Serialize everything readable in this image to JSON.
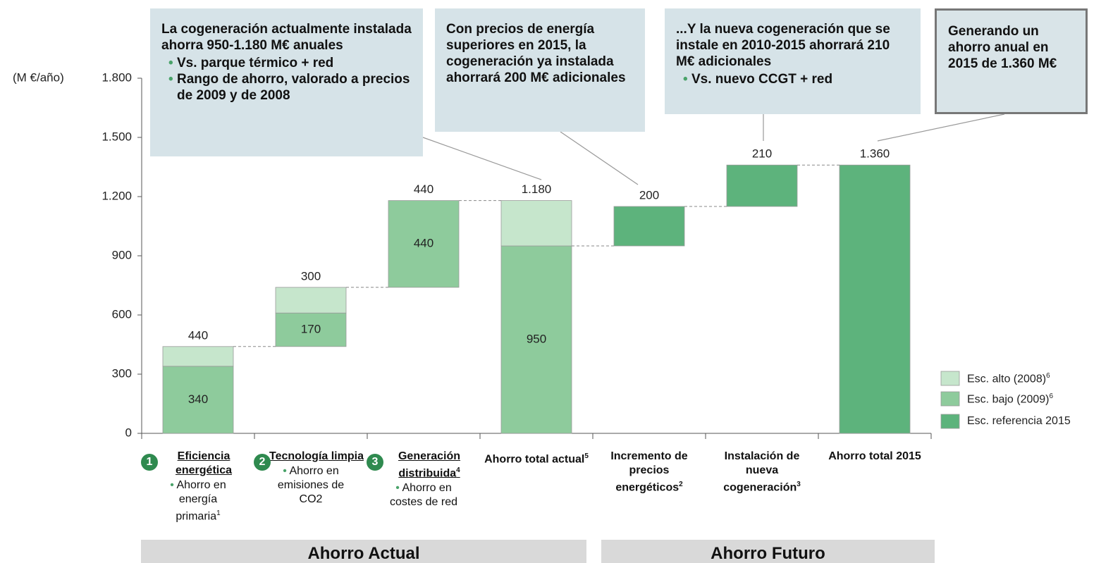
{
  "chart_data": {
    "type": "waterfall",
    "y_unit": "(M €/año)",
    "ylim": [
      0,
      1800
    ],
    "yticks": [
      0,
      {
        "value": 300,
        "label": "300"
      },
      600,
      900,
      {
        "value": 1200,
        "label": "1.200"
      },
      {
        "value": 1500,
        "label": "1.500"
      },
      {
        "value": 1800,
        "label": "1.800"
      }
    ],
    "categories": [
      "Eficiencia energética",
      "Tecnología limpia",
      "Generación distribuida",
      "Ahorro total actual",
      "Incremento de precios energéticos",
      "Instalación de nueva cogeneración",
      "Ahorro total 2015"
    ],
    "category_numbers": [
      "1",
      "2",
      "3",
      null,
      null,
      null,
      null
    ],
    "category_sups": [
      null,
      null,
      "4",
      "5",
      "2",
      "3",
      null
    ],
    "category_notes": [
      "Ahorro en energía primaria",
      "Ahorro en emisiones de CO2",
      "Ahorro en costes de red",
      null,
      null,
      null,
      null
    ],
    "category_note_sups": [
      "1",
      null,
      null,
      null,
      null,
      null,
      null
    ],
    "bar_kinds": [
      "step",
      "step",
      "step",
      "total",
      "step",
      "step",
      "total"
    ],
    "series": [
      {
        "name": "Esc. alto (2008)",
        "sup": "6",
        "color": "#c6e6cc",
        "values": [
          100,
          130,
          null,
          230,
          null,
          null,
          null
        ]
      },
      {
        "name": "Esc. bajo (2009)",
        "sup": "6",
        "color": "#8ecb9c",
        "show_values": true,
        "values": [
          340,
          170,
          440,
          950,
          null,
          null,
          null
        ]
      },
      {
        "name": "Esc. referencia 2015",
        "color": "#5db37c",
        "values": [
          null,
          null,
          null,
          null,
          200,
          210,
          1360
        ]
      }
    ],
    "bar_totals": [
      440,
      300,
      440,
      1180,
      200,
      210,
      1360
    ],
    "bar_total_labels": [
      "440",
      "300",
      "440",
      "1.180",
      "200",
      "210",
      "1.360"
    ],
    "groups": [
      "Ahorro Actual",
      "Ahorro Futuro"
    ],
    "annotations": [
      {
        "text": "La cogeneración actualmente instalada ahorra 950-1.180 M€ anuales",
        "bullets": [
          "Vs. parque térmico + red",
          "Rango de ahorro, valorado a precios de 2009 y de 2008"
        ]
      },
      {
        "text": "Con precios de energía superiores en 2015, la cogeneración ya instalada ahorrará 200 M€ adicionales",
        "bullets": []
      },
      {
        "text": "...Y la nueva cogeneración que se instale en 2010-2015 ahorrará 210 M€ adicionales",
        "bullets": [
          "Vs. nuevo CCGT + red"
        ]
      },
      {
        "text": "Generando un ahorro anual en 2015 de 1.360 M€",
        "bullets": []
      }
    ]
  }
}
